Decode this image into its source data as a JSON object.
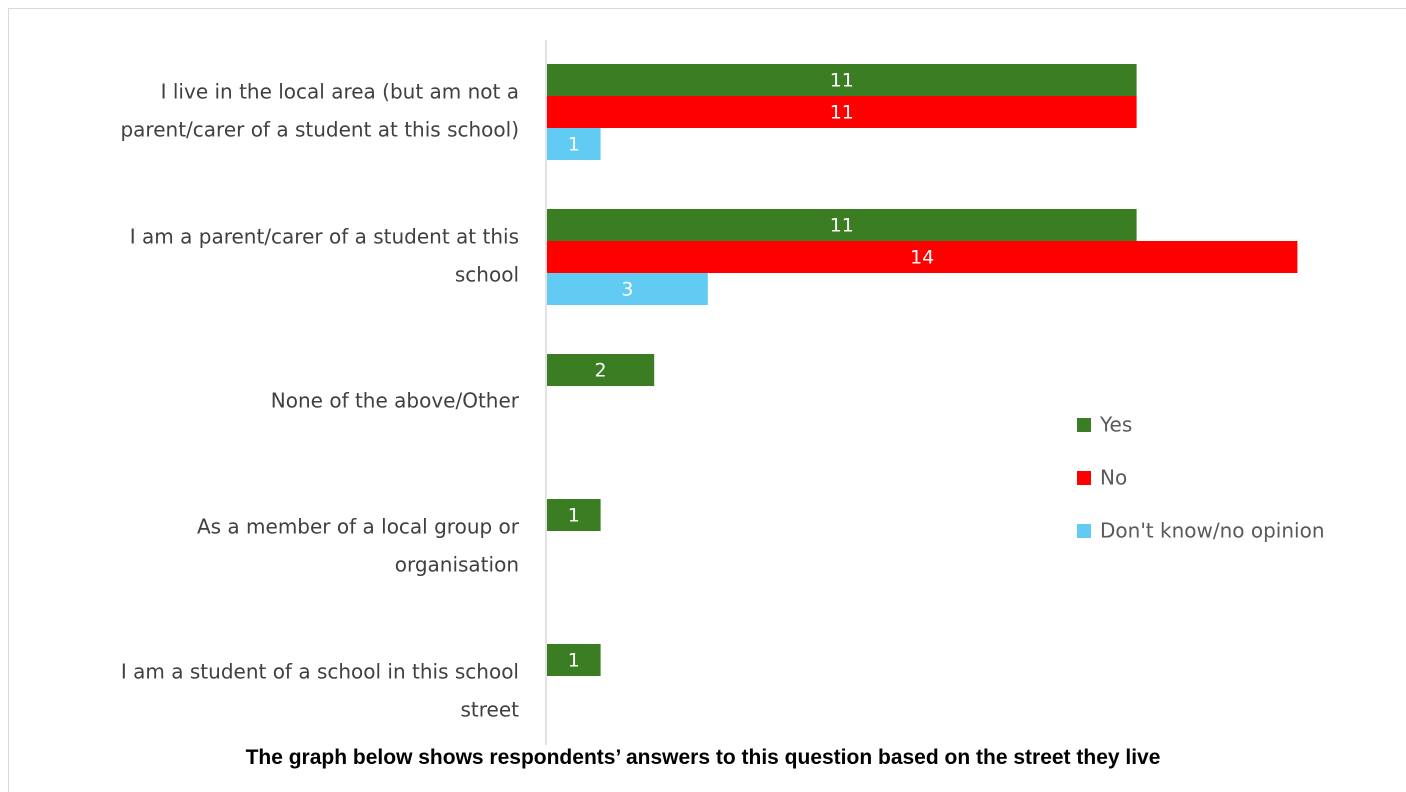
{
  "chart_data": {
    "type": "bar",
    "orientation": "horizontal",
    "categories": [
      [
        "I live in the local area (but am not a",
        "parent/carer of a student at this school)"
      ],
      [
        "I am a parent/carer of a student at this",
        "school"
      ],
      [
        "None of the above/Other"
      ],
      [
        "As a member of a local group or",
        "organisation"
      ],
      [
        "I am a student of a school in this school",
        "street"
      ]
    ],
    "series": [
      {
        "name": "Yes",
        "color": "#3a7d22",
        "values": [
          11,
          11,
          2,
          1,
          1
        ]
      },
      {
        "name": "No",
        "color": "#ff0000",
        "values": [
          11,
          14,
          null,
          null,
          null
        ]
      },
      {
        "name": "Don't know/no opinion",
        "color": "#61cbf3",
        "values": [
          1,
          3,
          null,
          null,
          null
        ]
      }
    ],
    "data_labels": true,
    "legend_position": "right",
    "grid": false
  },
  "caption": "The graph below shows respondents’ answers to this question based on the street they live"
}
